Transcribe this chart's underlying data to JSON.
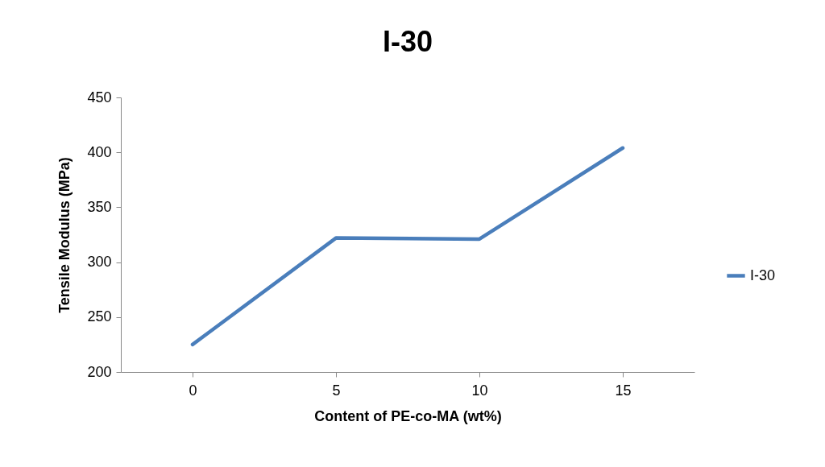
{
  "chart_data": {
    "type": "line",
    "title": "I-30",
    "xlabel": "Content of PE-co-MA (wt%)",
    "ylabel": "Tensile Modulus (MPa)",
    "categories": [
      "0",
      "5",
      "10",
      "15"
    ],
    "series": [
      {
        "name": "I-30",
        "color": "#4a7ebb",
        "values": [
          225,
          322,
          321,
          404
        ]
      }
    ],
    "ylim": [
      200,
      450
    ],
    "yticks": [
      200,
      250,
      300,
      350,
      400,
      450
    ],
    "grid": false,
    "legend": "right"
  }
}
